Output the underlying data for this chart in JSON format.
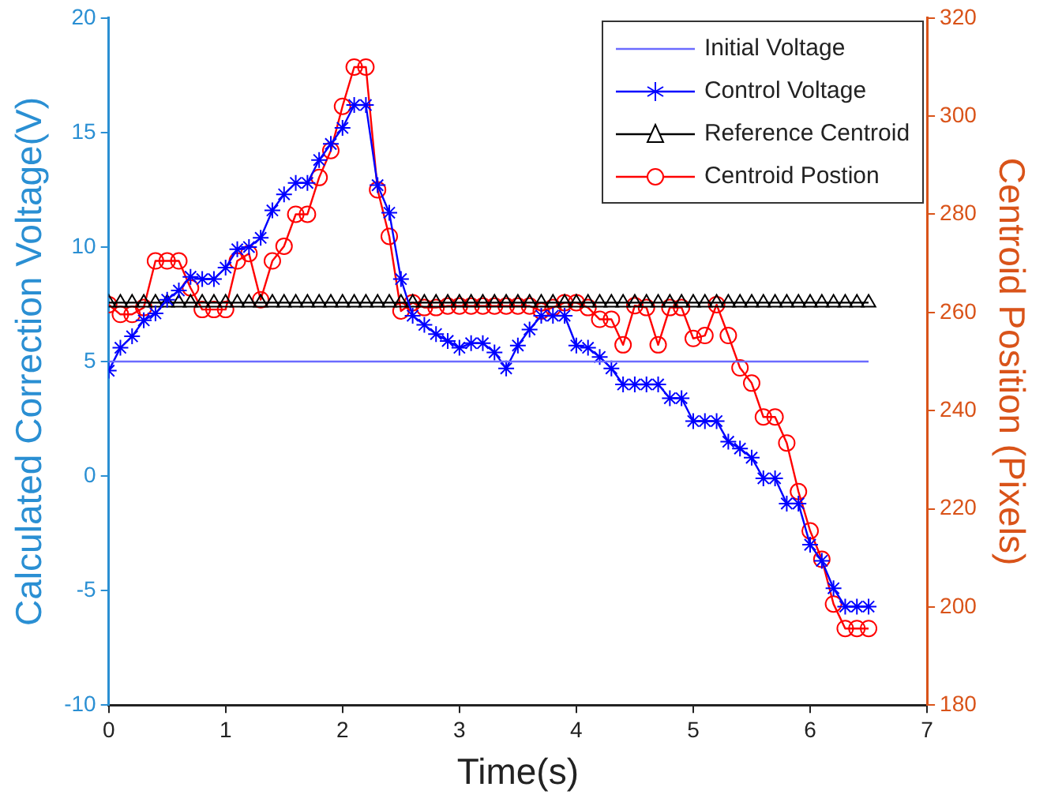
{
  "chart_data": {
    "type": "line",
    "xlabel": "Time(s)",
    "ylabel": "Calculated Correction Voltage(V)",
    "y2label": "Centroid Position (Pixels)",
    "x": [
      0,
      0.1,
      0.2,
      0.3,
      0.4,
      0.5,
      0.6,
      0.7,
      0.8,
      0.9,
      1,
      1.1,
      1.2,
      1.3,
      1.4,
      1.5,
      1.6,
      1.7,
      1.8,
      1.9,
      2,
      2.1,
      2.2,
      2.3,
      2.4,
      2.5,
      2.6,
      2.7,
      2.8,
      2.9,
      3,
      3.1,
      3.2,
      3.3,
      3.4,
      3.5,
      3.6,
      3.7,
      3.8,
      3.9,
      4,
      4.1,
      4.2,
      4.3,
      4.4,
      4.5,
      4.6,
      4.7,
      4.8,
      4.9,
      5,
      5.1,
      5.2,
      5.3,
      5.4,
      5.5,
      5.6,
      5.7,
      5.8,
      5.9,
      6,
      6.1,
      6.2,
      6.3,
      6.4,
      6.5
    ],
    "series": [
      {
        "name": "Initial Voltage",
        "color": "#6b6bff",
        "x": [
          0,
          6.5
        ],
        "values": [
          5,
          5
        ],
        "marker": "none"
      },
      {
        "name": "Control Voltage",
        "color": "#0000ff",
        "marker": "cross",
        "values": [
          4.6,
          5.6,
          6.1,
          6.8,
          7.1,
          7.7,
          8.1,
          8.7,
          8.6,
          8.6,
          9.1,
          9.9,
          10.0,
          10.4,
          11.6,
          12.3,
          12.8,
          12.8,
          13.8,
          14.5,
          15.2,
          16.2,
          16.2,
          12.7,
          11.5,
          8.6,
          7.0,
          6.6,
          6.2,
          5.9,
          5.6,
          5.8,
          5.8,
          5.4,
          4.7,
          5.7,
          6.4,
          7.0,
          7.0,
          7.0,
          5.7,
          5.6,
          5.2,
          4.7,
          4.0,
          4.0,
          4.0,
          4.0,
          3.4,
          3.4,
          2.4,
          2.4,
          2.4,
          1.5,
          1.2,
          0.8,
          -0.1,
          -0.1,
          -1.2,
          -1.2,
          -3.0,
          -3.7,
          -4.9,
          -5.7,
          -5.7,
          -5.7
        ]
      },
      {
        "name": "Reference Centroid",
        "color": "#000000",
        "marker": "triangle",
        "axis": "y2",
        "values": [
          262,
          262,
          262,
          262,
          262,
          262,
          262,
          262,
          262,
          262,
          262,
          262,
          262,
          262,
          262,
          262,
          262,
          262,
          262,
          262,
          262,
          262,
          262,
          262,
          262,
          262,
          262,
          262,
          262,
          262,
          262,
          262,
          262,
          262,
          262,
          262,
          262,
          262,
          262,
          262,
          262,
          262,
          262,
          262,
          262,
          262,
          262,
          262,
          262,
          262,
          262,
          262,
          262,
          262,
          262,
          262,
          262,
          262,
          262,
          262,
          262,
          262,
          262,
          262,
          262,
          262
        ]
      },
      {
        "name": "Centroid Postion",
        "color": "#ff0000",
        "marker": "circle",
        "axis": "y2",
        "values": [
          261.6,
          259.6,
          259.6,
          261,
          270.5,
          270.5,
          270.5,
          265,
          260.6,
          260.6,
          260.6,
          270.5,
          272,
          262.6,
          270.5,
          273.5,
          280,
          280,
          287.5,
          293,
          302,
          310,
          310,
          285,
          275.5,
          260.3,
          262,
          261,
          261,
          261.3,
          261.3,
          261.3,
          261.3,
          261.3,
          261.3,
          261.3,
          261.3,
          260.3,
          261,
          262,
          262,
          261,
          258.6,
          258.6,
          253.4,
          261.4,
          261,
          253.4,
          261,
          261,
          254.7,
          255.3,
          261.6,
          255.3,
          248.7,
          245.6,
          238.7,
          238.7,
          233.4,
          223.5,
          215.5,
          209.7,
          200.6,
          195.6,
          195.6,
          195.6
        ]
      }
    ],
    "xlim": [
      0,
      7
    ],
    "xticks": [
      0,
      1,
      2,
      3,
      4,
      5,
      6,
      7
    ],
    "ylim": [
      -10,
      20
    ],
    "yticks": [
      -10,
      -5,
      0,
      5,
      10,
      15,
      20
    ],
    "y2lim": [
      180,
      320
    ],
    "y2ticks": [
      180,
      200,
      220,
      240,
      260,
      280,
      300,
      320
    ],
    "legend": "top right",
    "grid": false,
    "line_style": "solid"
  }
}
